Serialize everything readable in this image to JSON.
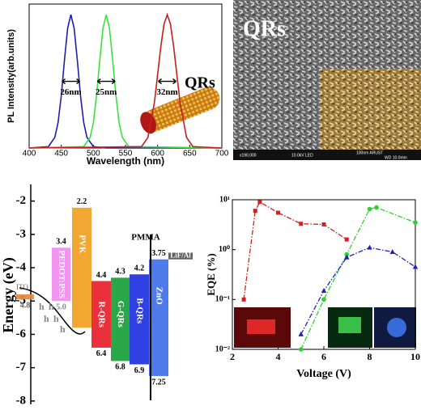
{
  "chart_data": [
    {
      "type": "line",
      "x_label": "Wavelength (nm)",
      "y_label": "PL Intensity(arb.units)",
      "xlim": [
        400,
        700
      ],
      "xticks": [
        400,
        450,
        500,
        550,
        600,
        650,
        700
      ],
      "ylim": [
        0,
        1.08
      ],
      "annotations": [
        "26nm",
        "25nm",
        "32nm",
        "QRs"
      ],
      "series": [
        {
          "name": "blue",
          "color": "#1f1fa8",
          "x": [
            400,
            430,
            440,
            445,
            450,
            455,
            460,
            465,
            470,
            475,
            480,
            485,
            490,
            500,
            520,
            700
          ],
          "values": [
            0,
            0.01,
            0.08,
            0.19,
            0.39,
            0.66,
            0.9,
            1,
            0.9,
            0.66,
            0.39,
            0.19,
            0.08,
            0.01,
            0,
            0
          ]
        },
        {
          "name": "green",
          "color": "#3ee03e",
          "x": [
            400,
            485,
            495,
            500,
            505,
            510,
            515,
            520,
            525,
            530,
            535,
            540,
            545,
            555,
            700
          ],
          "values": [
            0,
            0.01,
            0.08,
            0.19,
            0.4,
            0.66,
            0.9,
            1,
            0.9,
            0.66,
            0.4,
            0.19,
            0.08,
            0.01,
            0
          ]
        },
        {
          "name": "red",
          "color": "#c81e1e",
          "x": [
            400,
            575,
            585,
            595,
            605,
            610,
            615,
            620,
            625,
            635,
            645,
            655,
            700
          ],
          "values": [
            0,
            0.01,
            0.08,
            0.34,
            0.76,
            0.93,
            1,
            0.93,
            0.76,
            0.34,
            0.08,
            0.01,
            0
          ]
        }
      ]
    },
    {
      "type": "image",
      "title": "QRs",
      "annotations": [
        "x190,000",
        "10.0kV LED",
        "100nm ARUST",
        "WD 10.0mm"
      ]
    },
    {
      "type": "floating_bar",
      "y_label": "Energy (eV)",
      "ylim": [
        -8.1,
        -1.5
      ],
      "yticks": [
        -2,
        -3,
        -4,
        -5,
        -6,
        -7,
        -8
      ],
      "annotations": [
        "PMMA",
        "h",
        "h",
        "h",
        "h",
        "h"
      ],
      "categories": [
        "ITO",
        "PEDOT:PSS",
        "PVK",
        "R-QRs",
        "G-QRs",
        "B-QRs",
        "ZnO",
        "LiF/Al"
      ],
      "colors": [
        "#e8883a",
        "#f08cf0",
        "#f0a020",
        "#e8202a",
        "#18a038",
        "#2030e0",
        "#4070e8",
        "#555555"
      ],
      "high": [
        -4.8,
        -3.4,
        -2.2,
        -4.4,
        -4.3,
        -4.2,
        -3.75,
        -3.55
      ],
      "low": [
        -4.95,
        -5.0,
        -5.8,
        -6.4,
        -6.8,
        -6.9,
        -7.25,
        -3.75
      ],
      "high_labels": [
        "4.8",
        "3.4",
        "2.2",
        "4.4",
        "4.3",
        "4.2",
        "3.75",
        null
      ],
      "low_labels": [
        null,
        "5.0",
        null,
        "6.4",
        "6.8",
        "6.9",
        "7.25",
        null
      ]
    },
    {
      "type": "line",
      "log_y": true,
      "x_label": "Voltage (V)",
      "y_label": "EQE (%)",
      "xlim": [
        2,
        10
      ],
      "xticks": [
        2,
        4,
        6,
        8,
        10
      ],
      "ylim": [
        0.01,
        10
      ],
      "yticks": [
        {
          "value": 0.01,
          "label": "10⁻²"
        },
        {
          "value": 0.1,
          "label": "10⁻¹"
        },
        {
          "value": 1,
          "label": "10⁰"
        },
        {
          "value": 10,
          "label": "10¹"
        }
      ],
      "series": [
        {
          "name": "R-QRs",
          "color": "#d42020",
          "marker": "square",
          "x": [
            2.5,
            3,
            3.2,
            4,
            5,
            6,
            7
          ],
          "values": [
            0.1,
            6,
            9,
            5.5,
            3.3,
            3.2,
            1.6
          ]
        },
        {
          "name": "G-QRs",
          "color": "#30d030",
          "marker": "circle",
          "x": [
            5,
            6,
            7,
            8,
            8.3,
            10
          ],
          "values": [
            0.01,
            0.1,
            0.8,
            6.5,
            7,
            3.5
          ]
        },
        {
          "name": "B-QRs",
          "color": "#2020c0",
          "marker": "triangle",
          "x": [
            5,
            6,
            7,
            8,
            9,
            10
          ],
          "values": [
            0.02,
            0.15,
            0.7,
            1.1,
            0.9,
            0.45
          ]
        }
      ]
    }
  ]
}
